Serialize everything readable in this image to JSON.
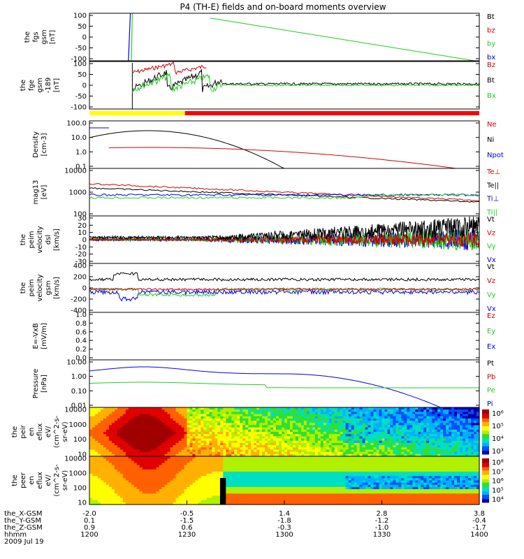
{
  "title": "P4 (TH-E) fields and on-board moments overview",
  "colors": {
    "black": "#000000",
    "red": "#d40000",
    "green": "#22cc22",
    "blue": "#0000dd",
    "yellow": "#ffff00",
    "bar_red": "#ff0000"
  },
  "chart_data": [
    {
      "type": "line",
      "name": "fgs",
      "ylabel": [
        "the",
        "fgs",
        "gsm",
        "[nT]"
      ],
      "yticks": [
        "100",
        "50",
        "0",
        "-50",
        "-100"
      ],
      "ylim": [
        -100,
        100
      ],
      "legend": [
        {
          "label": "Bt",
          "color": "black"
        },
        {
          "label": "bz",
          "color": "red"
        },
        {
          "label": "by",
          "color": "green"
        },
        {
          "label": "bx",
          "color": "blue"
        }
      ]
    },
    {
      "type": "line",
      "name": "fge",
      "ylabel": [
        "the",
        "fge",
        "gsm",
        "-189",
        "[nT]"
      ],
      "yticks": [
        "100",
        "50",
        "0",
        "-50",
        "-100"
      ],
      "ylim": [
        -125,
        105
      ],
      "legend": [
        {
          "label": "Bz",
          "color": "red"
        },
        {
          "label": "Bt",
          "color": "black"
        },
        {
          "label": "Bx",
          "color": "green"
        }
      ]
    },
    {
      "type": "bar",
      "name": "mode-bar",
      "segments": [
        {
          "from": 1200,
          "to": 1249,
          "color": "yellow"
        },
        {
          "from": 1249,
          "to": 1400,
          "color": "bar_red"
        }
      ]
    },
    {
      "type": "line",
      "name": "density",
      "ylabel": [
        "Density",
        "[cm-3]"
      ],
      "yticks": [
        "100.0",
        "10.0",
        "1.0",
        "0.1"
      ],
      "log": true,
      "ylim": [
        0.1,
        100
      ],
      "legend": [
        {
          "label": "Ne",
          "color": "red"
        },
        {
          "label": "Ni",
          "color": "black"
        },
        {
          "label": "Npot",
          "color": "blue"
        }
      ]
    },
    {
      "type": "line",
      "name": "temperature",
      "ylabel": [
        "mag13",
        "[eV]"
      ],
      "yticks": [
        "10000",
        "1000",
        "100"
      ],
      "log": true,
      "ylim": [
        50,
        10000
      ],
      "legend": [
        {
          "label": "Te⊥",
          "color": "red"
        },
        {
          "label": "Te||",
          "color": "black"
        },
        {
          "label": "Ti⊥",
          "color": "blue"
        },
        {
          "label": "Ti||",
          "color": "green"
        }
      ]
    },
    {
      "type": "line",
      "name": "velocity-e",
      "ylabel": [
        "the",
        "peim",
        "velocity",
        "dsl",
        "[km/s]"
      ],
      "yticks": [
        "30",
        "20",
        "10",
        "0",
        "-10",
        "-20",
        "-30"
      ],
      "ylim": [
        -35,
        35
      ],
      "legend": [
        {
          "label": "Vt",
          "color": "black"
        },
        {
          "label": "Vz",
          "color": "red"
        },
        {
          "label": "Vy",
          "color": "green"
        },
        {
          "label": "Vx",
          "color": "blue"
        }
      ]
    },
    {
      "type": "line",
      "name": "velocity-i",
      "ylabel": [
        "the",
        "peim",
        "velocity",
        "gsm",
        "[km/s]"
      ],
      "yticks": [
        "400",
        "200",
        "0",
        "-200",
        "-400"
      ],
      "ylim": [
        -450,
        450
      ],
      "legend": [
        {
          "label": "Vt",
          "color": "black"
        },
        {
          "label": "Vz",
          "color": "red"
        },
        {
          "label": "Vy",
          "color": "green"
        },
        {
          "label": "Vx",
          "color": "blue"
        }
      ]
    },
    {
      "type": "line",
      "name": "efield",
      "ylabel": [
        "E=-VxB",
        "[mV/m]"
      ],
      "yticks": [
        "1.0",
        "0.8",
        "0.6",
        "0.4",
        "0.2",
        "0.0"
      ],
      "ylim": [
        0,
        1
      ],
      "legend": [
        {
          "label": "Ez",
          "color": "red"
        },
        {
          "label": "Ey",
          "color": "green"
        },
        {
          "label": "Ex",
          "color": "blue"
        }
      ]
    },
    {
      "type": "line",
      "name": "pressure",
      "ylabel": [
        "Pressure",
        "[nPa]"
      ],
      "yticks": [
        "10.00",
        "1.00",
        "0.10",
        "0.01"
      ],
      "log": true,
      "ylim": [
        0.005,
        20
      ],
      "legend": [
        {
          "label": "Pt",
          "color": "black"
        },
        {
          "label": "Pb",
          "color": "red"
        },
        {
          "label": "Pe",
          "color": "green"
        },
        {
          "label": "Pi",
          "color": "blue"
        }
      ]
    },
    {
      "type": "heatmap",
      "name": "ion-spectrogram",
      "ylabel": [
        "the",
        "peir",
        "en",
        "eflux",
        "eV/",
        "(cm^2-s-",
        "sr-eV)"
      ],
      "yticks": [
        "10000",
        "1000",
        "100",
        "10"
      ],
      "colorbar_ticks": [
        "10⁶",
        "10⁵",
        "10⁴",
        "10³"
      ]
    },
    {
      "type": "heatmap",
      "name": "electron-spectrogram",
      "ylabel": [
        "the",
        "peer",
        "en",
        "eflux",
        "eV/",
        "(cm^2-s-",
        "sr-eV)"
      ],
      "yticks": [
        "10000",
        "1000",
        "100",
        "10"
      ],
      "colorbar_ticks": [
        "10⁸",
        "10⁷",
        "10⁶",
        "10⁵",
        "10⁴"
      ]
    }
  ],
  "x_axis": {
    "ticks_hhmm": [
      "1200",
      "1230",
      "1300",
      "1330",
      "1400"
    ],
    "rows": [
      {
        "label": "the_X-GSM",
        "values": [
          "-2.0",
          "-0.5",
          "1.4",
          "2.8",
          "3.8"
        ]
      },
      {
        "label": "the_Y-GSM",
        "values": [
          "0.1",
          "-1.5",
          "-1.8",
          "-1.2",
          "-0.4"
        ]
      },
      {
        "label": "the_Z-GSM",
        "values": [
          "0.9",
          "0.6",
          "-0.3",
          "-1.0",
          "-1.7"
        ]
      },
      {
        "label": "hhmm",
        "values": [
          "1200",
          "1230",
          "1300",
          "1330",
          "1400"
        ]
      }
    ],
    "date": "2009 Jul 19"
  }
}
